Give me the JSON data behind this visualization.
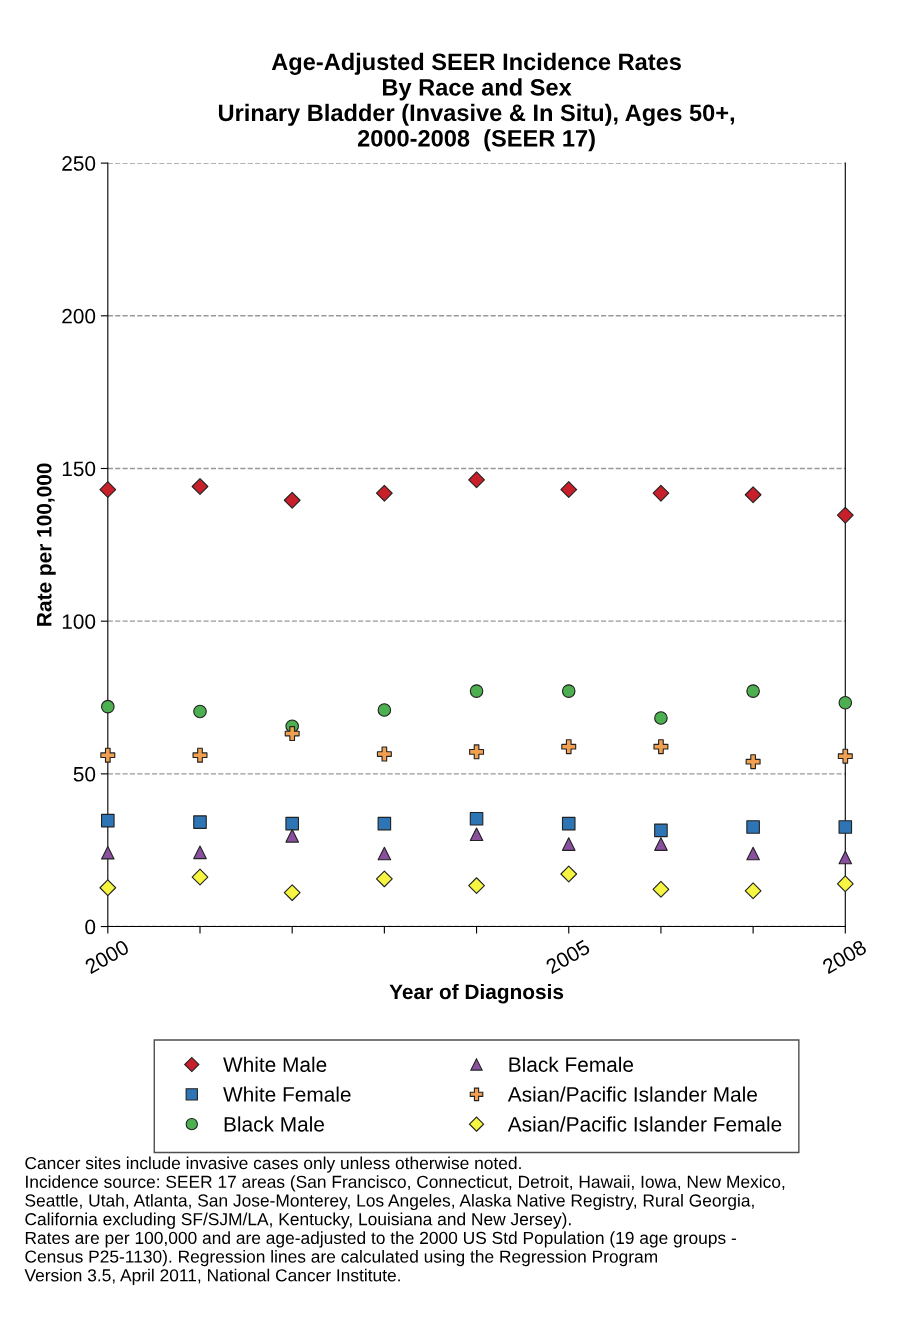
{
  "chart_data": {
    "type": "scatter",
    "title": "Age-Adjusted SEER Incidence Rates\nBy Race and Sex\nUrinary Bladder (Invasive & In Situ), Ages 50+,\n2000-2008  (SEER 17)",
    "xlabel": "Year of Diagnosis",
    "ylabel": "Rate per 100,000",
    "x": [
      2000,
      2001,
      2002,
      2003,
      2004,
      2005,
      2006,
      2007,
      2008
    ],
    "series": [
      {
        "name": "White Male",
        "color": "#c8202a",
        "marker": "diamond",
        "values": [
          143.1,
          144.1,
          139.6,
          141.9,
          146.3,
          143.1,
          141.9,
          141.4,
          134.7
        ]
      },
      {
        "name": "White Female",
        "color": "#2e75b6",
        "marker": "square",
        "values": [
          34.7,
          34.2,
          33.7,
          33.7,
          35.3,
          33.7,
          31.5,
          32.6,
          32.6
        ]
      },
      {
        "name": "Black Male",
        "color": "#4caf50",
        "marker": "circle",
        "values": [
          72.0,
          70.4,
          65.6,
          70.9,
          77.1,
          77.1,
          68.3,
          77.1,
          73.3
        ]
      },
      {
        "name": "Black Female",
        "color": "#8a4f9e",
        "marker": "triangle",
        "values": [
          24.2,
          24.3,
          29.7,
          23.9,
          30.2,
          27.0,
          27.0,
          23.9,
          22.6
        ]
      },
      {
        "name": "Asian/Pacific Islander Male",
        "color": "#f0a050",
        "marker": "cross",
        "values": [
          56.1,
          56.1,
          63.2,
          56.5,
          57.2,
          58.9,
          58.9,
          54.0,
          55.8
        ]
      },
      {
        "name": "Asian/Pacific Islander Female",
        "color": "#f5f542",
        "marker": "diamond",
        "values": [
          12.7,
          16.2,
          11.1,
          15.6,
          13.4,
          17.2,
          12.2,
          11.7,
          14.0
        ]
      }
    ],
    "xlim": [
      2000,
      2008
    ],
    "xticks": [
      2000,
      {
        "value": 2001,
        "label": null
      },
      {
        "value": 2002,
        "label": null
      },
      {
        "value": 2003,
        "label": null
      },
      {
        "value": 2004,
        "label": null
      },
      2005,
      {
        "value": 2006,
        "label": null
      },
      {
        "value": 2007,
        "label": null
      },
      2008
    ],
    "ylim": [
      0,
      250
    ],
    "yticks": [
      0,
      50,
      100,
      150,
      200,
      250
    ],
    "grid": "y",
    "legend": "bottom",
    "annotations": [
      "Cancer sites include invasive cases only unless otherwise noted.\nIncidence source: SEER 17 areas (San Francisco, Connecticut, Detroit, Hawaii, Iowa, New Mexico,\nSeattle, Utah, Atlanta, San Jose-Monterey, Los Angeles, Alaska Native Registry, Rural Georgia,\nCalifornia excluding SF/SJM/LA, Kentucky, Louisiana and New Jersey).\nRates are per 100,000 and are age-adjusted to the 2000 US Std Population (19 age groups -\nCensus P25-1130). Regression lines are calculated using the Regression Program\nVersion 3.5, April 2011, National Cancer Institute."
    ]
  }
}
